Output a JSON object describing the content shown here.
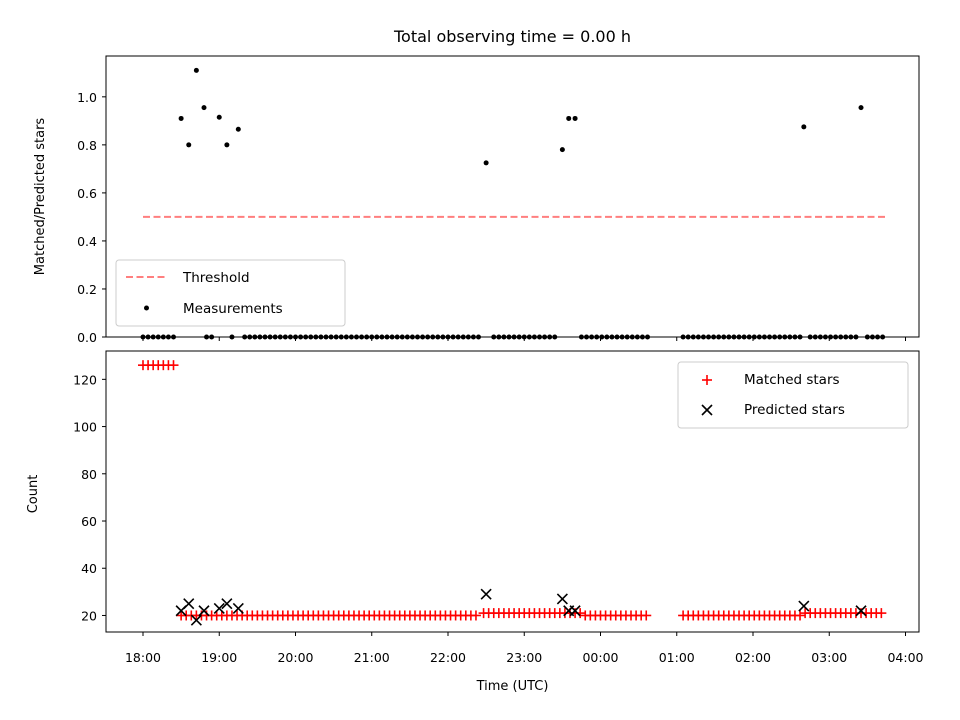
{
  "chart_data": {
    "type": "scatter",
    "title": "Total observing time = 0.00 h",
    "xlabel": "Time (UTC)",
    "x_ticks": [
      "18:00",
      "19:00",
      "20:00",
      "21:00",
      "22:00",
      "23:00",
      "00:00",
      "01:00",
      "02:00",
      "03:00",
      "04:00"
    ],
    "panels": [
      {
        "ylabel": "Matched/Predicted stars",
        "ylim": [
          0,
          1.17
        ],
        "y_ticks": [
          "0.0",
          "0.2",
          "0.4",
          "0.6",
          "0.8",
          "1.0"
        ],
        "legend_position": "lower-left",
        "threshold": {
          "name": "Threshold",
          "value": 0.5,
          "x_start": "18:00",
          "x_end": "03:45",
          "color": "#ff7f7f"
        },
        "series": [
          {
            "name": "Measurements",
            "color": "#000000",
            "points": [
              [
                "18:00",
                0
              ],
              [
                "18:04",
                0
              ],
              [
                "18:08",
                0
              ],
              [
                "18:12",
                0
              ],
              [
                "18:16",
                0
              ],
              [
                "18:20",
                0
              ],
              [
                "18:24",
                0
              ],
              [
                "18:30",
                0.91
              ],
              [
                "18:36",
                0.8
              ],
              [
                "18:42",
                1.11
              ],
              [
                "18:48",
                0.955
              ],
              [
                "18:50",
                0
              ],
              [
                "18:54",
                0
              ],
              [
                "19:00",
                0.915
              ],
              [
                "19:06",
                0.8
              ],
              [
                "19:10",
                0
              ],
              [
                "19:15",
                0.865
              ],
              [
                "19:20",
                0
              ],
              [
                "19:24",
                0
              ],
              [
                "19:28",
                0
              ],
              [
                "19:32",
                0
              ],
              [
                "19:36",
                0
              ],
              [
                "19:40",
                0
              ],
              [
                "19:44",
                0
              ],
              [
                "19:48",
                0
              ],
              [
                "19:52",
                0
              ],
              [
                "19:56",
                0
              ],
              [
                "20:00",
                0
              ],
              [
                "20:04",
                0
              ],
              [
                "20:08",
                0
              ],
              [
                "20:12",
                0
              ],
              [
                "20:16",
                0
              ],
              [
                "20:20",
                0
              ],
              [
                "20:24",
                0
              ],
              [
                "20:28",
                0
              ],
              [
                "20:32",
                0
              ],
              [
                "20:36",
                0
              ],
              [
                "20:40",
                0
              ],
              [
                "20:44",
                0
              ],
              [
                "20:48",
                0
              ],
              [
                "20:52",
                0
              ],
              [
                "20:56",
                0
              ],
              [
                "21:00",
                0
              ],
              [
                "21:04",
                0
              ],
              [
                "21:08",
                0
              ],
              [
                "21:12",
                0
              ],
              [
                "21:16",
                0
              ],
              [
                "21:20",
                0
              ],
              [
                "21:24",
                0
              ],
              [
                "21:28",
                0
              ],
              [
                "21:32",
                0
              ],
              [
                "21:36",
                0
              ],
              [
                "21:40",
                0
              ],
              [
                "21:44",
                0
              ],
              [
                "21:48",
                0
              ],
              [
                "21:52",
                0
              ],
              [
                "21:56",
                0
              ],
              [
                "22:00",
                0
              ],
              [
                "22:04",
                0
              ],
              [
                "22:08",
                0
              ],
              [
                "22:12",
                0
              ],
              [
                "22:16",
                0
              ],
              [
                "22:20",
                0
              ],
              [
                "22:24",
                0
              ],
              [
                "22:30",
                0.725
              ],
              [
                "22:36",
                0
              ],
              [
                "22:40",
                0
              ],
              [
                "22:44",
                0
              ],
              [
                "22:48",
                0
              ],
              [
                "22:52",
                0
              ],
              [
                "22:56",
                0
              ],
              [
                "23:00",
                0
              ],
              [
                "23:04",
                0
              ],
              [
                "23:08",
                0
              ],
              [
                "23:12",
                0
              ],
              [
                "23:16",
                0
              ],
              [
                "23:20",
                0
              ],
              [
                "23:24",
                0
              ],
              [
                "23:30",
                0.78
              ],
              [
                "23:35",
                0.91
              ],
              [
                "23:40",
                0.91
              ],
              [
                "23:45",
                0
              ],
              [
                "23:49",
                0
              ],
              [
                "23:53",
                0
              ],
              [
                "23:57",
                0
              ],
              [
                "00:01",
                0
              ],
              [
                "00:05",
                0
              ],
              [
                "00:09",
                0
              ],
              [
                "00:13",
                0
              ],
              [
                "00:17",
                0
              ],
              [
                "00:21",
                0
              ],
              [
                "00:25",
                0
              ],
              [
                "00:29",
                0
              ],
              [
                "00:33",
                0
              ],
              [
                "00:37",
                0
              ],
              [
                "01:05",
                0
              ],
              [
                "01:09",
                0
              ],
              [
                "01:13",
                0
              ],
              [
                "01:17",
                0
              ],
              [
                "01:21",
                0
              ],
              [
                "01:25",
                0
              ],
              [
                "01:29",
                0
              ],
              [
                "01:33",
                0
              ],
              [
                "01:37",
                0
              ],
              [
                "01:41",
                0
              ],
              [
                "01:45",
                0
              ],
              [
                "01:49",
                0
              ],
              [
                "01:53",
                0
              ],
              [
                "01:57",
                0
              ],
              [
                "02:01",
                0
              ],
              [
                "02:05",
                0
              ],
              [
                "02:09",
                0
              ],
              [
                "02:13",
                0
              ],
              [
                "02:17",
                0
              ],
              [
                "02:21",
                0
              ],
              [
                "02:25",
                0
              ],
              [
                "02:29",
                0
              ],
              [
                "02:33",
                0
              ],
              [
                "02:37",
                0
              ],
              [
                "02:40",
                0.875
              ],
              [
                "02:45",
                0
              ],
              [
                "02:49",
                0
              ],
              [
                "02:53",
                0
              ],
              [
                "02:57",
                0
              ],
              [
                "03:01",
                0
              ],
              [
                "03:05",
                0
              ],
              [
                "03:09",
                0
              ],
              [
                "03:13",
                0
              ],
              [
                "03:17",
                0
              ],
              [
                "03:21",
                0
              ],
              [
                "03:25",
                0.955
              ],
              [
                "03:30",
                0
              ],
              [
                "03:34",
                0
              ],
              [
                "03:38",
                0
              ],
              [
                "03:42",
                0
              ]
            ]
          }
        ]
      },
      {
        "ylabel": "Count",
        "ylim": [
          13,
          132
        ],
        "y_ticks": [
          "20",
          "40",
          "60",
          "80",
          "100",
          "120"
        ],
        "legend_position": "upper-right",
        "series": [
          {
            "name": "Matched stars",
            "color": "#ff0000",
            "marker": "plus",
            "runs": [
              {
                "from": "18:00",
                "to": "18:27",
                "step_min": 4,
                "value": 126
              },
              {
                "from": "18:30",
                "to": "22:24",
                "step_min": 4,
                "value": 20
              },
              {
                "from": "22:28",
                "to": "23:44",
                "step_min": 4,
                "value": 21
              },
              {
                "from": "23:48",
                "to": "00:37",
                "step_min": 4,
                "value": 20
              },
              {
                "from": "01:05",
                "to": "02:37",
                "step_min": 4,
                "value": 20
              },
              {
                "from": "02:41",
                "to": "03:42",
                "step_min": 4,
                "value": 21
              }
            ]
          },
          {
            "name": "Predicted stars",
            "color": "#000000",
            "marker": "x",
            "points": [
              [
                "18:30",
                22
              ],
              [
                "18:36",
                25
              ],
              [
                "18:42",
                18
              ],
              [
                "18:48",
                22
              ],
              [
                "19:00",
                23
              ],
              [
                "19:06",
                25
              ],
              [
                "19:15",
                23
              ],
              [
                "22:30",
                29
              ],
              [
                "23:30",
                27
              ],
              [
                "23:35",
                22
              ],
              [
                "23:40",
                22
              ],
              [
                "02:40",
                24
              ],
              [
                "03:25",
                22
              ]
            ]
          }
        ]
      }
    ]
  }
}
